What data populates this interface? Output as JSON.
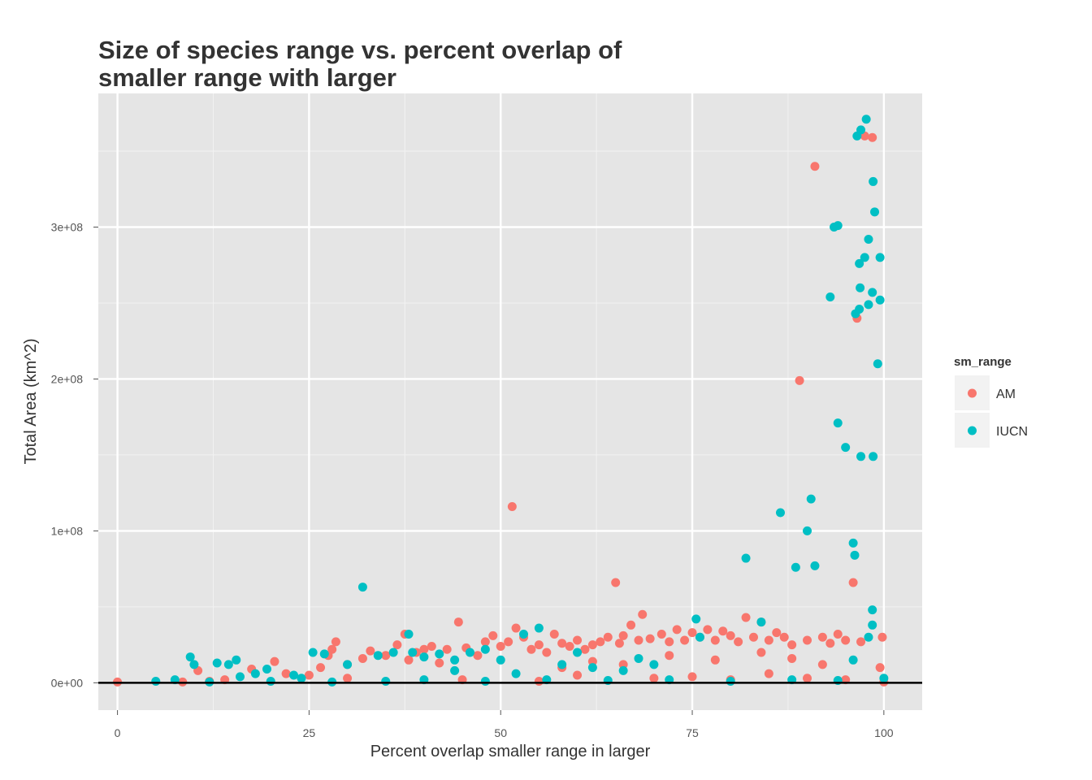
{
  "chart_data": {
    "type": "scatter",
    "title": [
      "Size of species range vs. percent overlap of",
      "smaller range with larger"
    ],
    "xlabel": "Percent overlap smaller range in larger",
    "ylabel": "Total Area (km^2)",
    "xlim": [
      -2.5,
      105
    ],
    "ylim": [
      -18000000,
      388000000
    ],
    "x_ticks": [
      0,
      25,
      50,
      75,
      100
    ],
    "x_tick_labels": [
      "0",
      "25",
      "50",
      "75",
      "100"
    ],
    "y_ticks": [
      0,
      100000000,
      200000000,
      300000000
    ],
    "y_tick_labels": [
      "0e+00",
      "1e+08",
      "2e+08",
      "3e+08"
    ],
    "grid": true,
    "hline": 0,
    "legend": {
      "title": "sm_range",
      "placement": "right",
      "entries": [
        {
          "label": "AM",
          "color": "#F8766D"
        },
        {
          "label": "IUCN",
          "color": "#00BFC4"
        }
      ]
    },
    "series": [
      {
        "name": "AM",
        "color": "#F8766D",
        "points": [
          [
            0,
            500000
          ],
          [
            8.5,
            500000
          ],
          [
            10.5,
            8000000
          ],
          [
            12,
            1000000
          ],
          [
            17.5,
            9000000
          ],
          [
            20.5,
            14000000
          ],
          [
            22,
            6000000
          ],
          [
            25,
            5000000
          ],
          [
            26.5,
            10000000
          ],
          [
            27.5,
            18000000
          ],
          [
            28,
            22000000
          ],
          [
            28.5,
            27000000
          ],
          [
            30,
            12000000
          ],
          [
            32,
            16000000
          ],
          [
            33,
            21000000
          ],
          [
            35,
            18000000
          ],
          [
            36.5,
            25000000
          ],
          [
            37.5,
            32000000
          ],
          [
            38,
            15000000
          ],
          [
            39,
            20000000
          ],
          [
            40,
            22000000
          ],
          [
            41,
            24000000
          ],
          [
            42,
            13000000
          ],
          [
            43,
            22000000
          ],
          [
            44.5,
            40000000
          ],
          [
            45.5,
            23000000
          ],
          [
            47,
            18000000
          ],
          [
            48,
            27000000
          ],
          [
            49,
            31000000
          ],
          [
            50,
            24000000
          ],
          [
            51,
            27000000
          ],
          [
            51.5,
            116000000
          ],
          [
            52,
            36000000
          ],
          [
            53,
            30000000
          ],
          [
            54,
            22000000
          ],
          [
            55,
            25000000
          ],
          [
            56,
            20000000
          ],
          [
            57,
            32000000
          ],
          [
            58,
            26000000
          ],
          [
            59,
            24000000
          ],
          [
            60,
            28000000
          ],
          [
            61,
            22000000
          ],
          [
            62,
            25000000
          ],
          [
            63,
            27000000
          ],
          [
            64,
            30000000
          ],
          [
            65,
            66000000
          ],
          [
            65.5,
            26000000
          ],
          [
            66,
            31000000
          ],
          [
            67,
            38000000
          ],
          [
            68,
            28000000
          ],
          [
            68.5,
            45000000
          ],
          [
            69.5,
            29000000
          ],
          [
            71,
            32000000
          ],
          [
            72,
            27000000
          ],
          [
            73,
            35000000
          ],
          [
            74,
            28000000
          ],
          [
            75,
            33000000
          ],
          [
            76,
            30000000
          ],
          [
            77,
            35000000
          ],
          [
            78,
            28000000
          ],
          [
            79,
            34000000
          ],
          [
            80,
            31000000
          ],
          [
            81,
            27000000
          ],
          [
            82,
            43000000
          ],
          [
            83,
            30000000
          ],
          [
            84,
            40000000
          ],
          [
            85,
            28000000
          ],
          [
            86,
            33000000
          ],
          [
            87,
            30000000
          ],
          [
            88,
            25000000
          ],
          [
            89,
            199000000
          ],
          [
            90,
            28000000
          ],
          [
            91,
            340000000
          ],
          [
            92,
            30000000
          ],
          [
            93,
            26000000
          ],
          [
            94,
            32000000
          ],
          [
            95,
            28000000
          ],
          [
            96,
            66000000
          ],
          [
            96.5,
            240000000
          ],
          [
            97,
            27000000
          ],
          [
            97.5,
            360000000
          ],
          [
            98.5,
            359000000
          ],
          [
            99.5,
            10000000
          ],
          [
            99.8,
            30000000
          ],
          [
            14,
            2000000
          ],
          [
            30,
            3000000
          ],
          [
            45,
            2000000
          ],
          [
            55,
            1000000
          ],
          [
            60,
            5000000
          ],
          [
            70,
            3000000
          ],
          [
            75,
            4000000
          ],
          [
            80,
            2000000
          ],
          [
            85,
            6000000
          ],
          [
            90,
            3000000
          ],
          [
            95,
            2000000
          ],
          [
            100,
            500000
          ],
          [
            72,
            18000000
          ],
          [
            78,
            15000000
          ],
          [
            84,
            20000000
          ],
          [
            88,
            16000000
          ],
          [
            92,
            12000000
          ],
          [
            66,
            12000000
          ],
          [
            62,
            14000000
          ],
          [
            58,
            10000000
          ]
        ]
      },
      {
        "name": "IUCN",
        "color": "#00BFC4",
        "points": [
          [
            5,
            1000000
          ],
          [
            7.5,
            2000000
          ],
          [
            9.5,
            17000000
          ],
          [
            10,
            12000000
          ],
          [
            13,
            13000000
          ],
          [
            14.5,
            12000000
          ],
          [
            15.5,
            15000000
          ],
          [
            18,
            6000000
          ],
          [
            19.5,
            9000000
          ],
          [
            23,
            5000000
          ],
          [
            25.5,
            20000000
          ],
          [
            27,
            19000000
          ],
          [
            30,
            12000000
          ],
          [
            32,
            63000000
          ],
          [
            34,
            18000000
          ],
          [
            36,
            20000000
          ],
          [
            38,
            32000000
          ],
          [
            38.5,
            20000000
          ],
          [
            40,
            17000000
          ],
          [
            42,
            19000000
          ],
          [
            44,
            15000000
          ],
          [
            46,
            20000000
          ],
          [
            48,
            22000000
          ],
          [
            50,
            15000000
          ],
          [
            53,
            32000000
          ],
          [
            55,
            36000000
          ],
          [
            58,
            12000000
          ],
          [
            62,
            10000000
          ],
          [
            66,
            8000000
          ],
          [
            70,
            12000000
          ],
          [
            75.5,
            42000000
          ],
          [
            76,
            30000000
          ],
          [
            82,
            82000000
          ],
          [
            84,
            40000000
          ],
          [
            86.5,
            112000000
          ],
          [
            88.5,
            76000000
          ],
          [
            90,
            100000000
          ],
          [
            90.5,
            121000000
          ],
          [
            91,
            77000000
          ],
          [
            93,
            254000000
          ],
          [
            93.5,
            300000000
          ],
          [
            94,
            301000000
          ],
          [
            94,
            171000000
          ],
          [
            95,
            155000000
          ],
          [
            96,
            92000000
          ],
          [
            96.2,
            84000000
          ],
          [
            96.3,
            243000000
          ],
          [
            96.8,
            246000000
          ],
          [
            96.5,
            360000000
          ],
          [
            96.8,
            276000000
          ],
          [
            96.9,
            260000000
          ],
          [
            97,
            364000000
          ],
          [
            97,
            149000000
          ],
          [
            97.5,
            280000000
          ],
          [
            97.7,
            371000000
          ],
          [
            98,
            292000000
          ],
          [
            98,
            249000000
          ],
          [
            98.5,
            48000000
          ],
          [
            98.5,
            38000000
          ],
          [
            98.5,
            257000000
          ],
          [
            98.6,
            330000000
          ],
          [
            98.6,
            149000000
          ],
          [
            98.8,
            310000000
          ],
          [
            99.2,
            210000000
          ],
          [
            99.5,
            280000000
          ],
          [
            99.5,
            252000000
          ],
          [
            98,
            30000000
          ],
          [
            96,
            15000000
          ],
          [
            12,
            500000
          ],
          [
            20,
            1000000
          ],
          [
            28,
            500000
          ],
          [
            35,
            1000000
          ],
          [
            40,
            2000000
          ],
          [
            48,
            1000000
          ],
          [
            56,
            2000000
          ],
          [
            64,
            1500000
          ],
          [
            72,
            2000000
          ],
          [
            80,
            1000000
          ],
          [
            88,
            2000000
          ],
          [
            94,
            1500000
          ],
          [
            100,
            3000000
          ],
          [
            60,
            20000000
          ],
          [
            68,
            16000000
          ],
          [
            44,
            8000000
          ],
          [
            52,
            6000000
          ],
          [
            24,
            3000000
          ],
          [
            16,
            4000000
          ]
        ]
      }
    ]
  }
}
